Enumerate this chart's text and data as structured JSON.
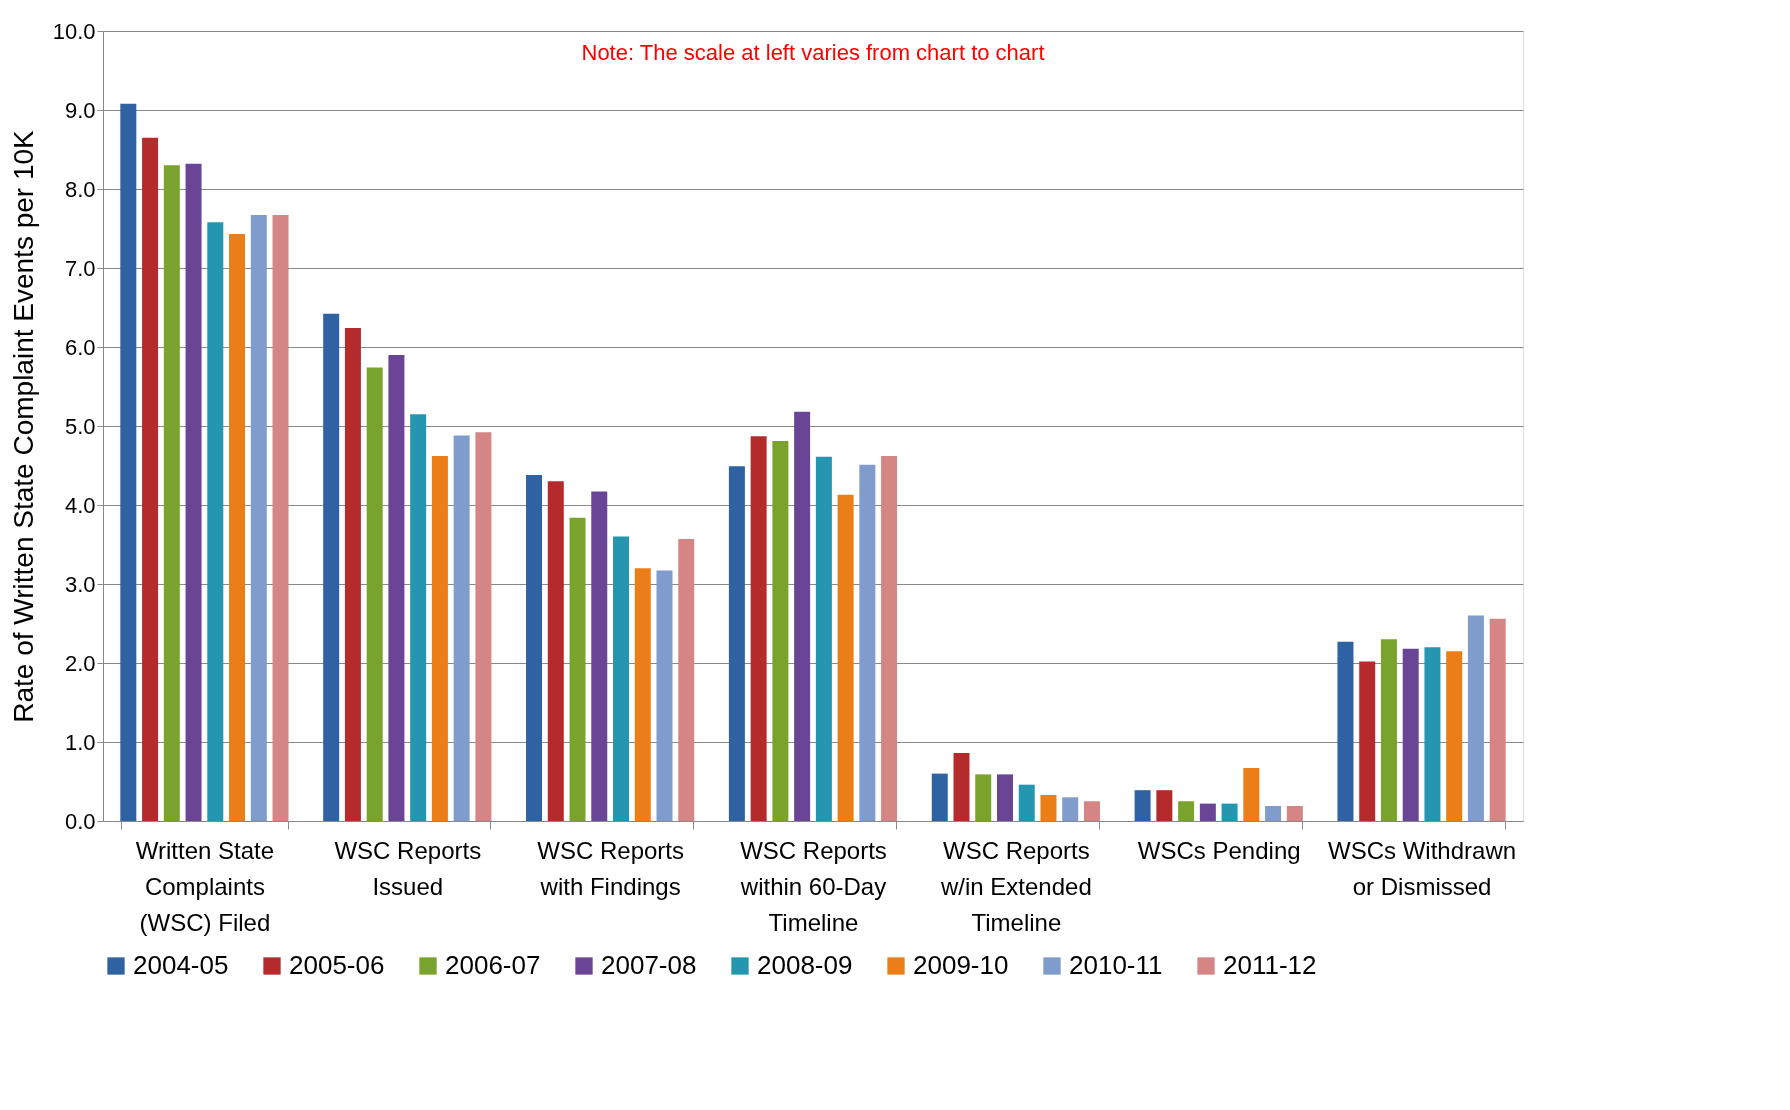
{
  "chart_data": {
    "type": "bar",
    "ylabel": "Rate of Written State Complaint Events per 10K",
    "annotations": [
      "Note:  The scale at left varies from chart to chart"
    ],
    "categories": [
      "Written State Complaints (WSC) Filed",
      "WSC Reports Issued",
      "WSC Reports with Findings",
      "WSC Reports within 60-Day Timeline",
      "WSC Reports w/in Extended Timeline",
      "WSCs Pending",
      "WSCs Withdrawn or Dismissed"
    ],
    "series": [
      {
        "name": "2004-05",
        "color": "#2e62a3",
        "values": [
          9.08,
          6.42,
          4.38,
          4.49,
          0.6,
          0.39,
          2.27
        ]
      },
      {
        "name": "2005-06",
        "color": "#b52b2b",
        "values": [
          8.65,
          6.24,
          4.3,
          4.87,
          0.86,
          0.39,
          2.02
        ]
      },
      {
        "name": "2006-07",
        "color": "#7aa32e",
        "values": [
          8.3,
          5.74,
          3.84,
          4.81,
          0.59,
          0.25,
          2.3
        ]
      },
      {
        "name": "2007-08",
        "color": "#6a4596",
        "values": [
          8.32,
          5.9,
          4.17,
          5.18,
          0.59,
          0.22,
          2.18
        ]
      },
      {
        "name": "2008-09",
        "color": "#2596b0",
        "values": [
          7.58,
          5.15,
          3.6,
          4.61,
          0.46,
          0.22,
          2.2
        ]
      },
      {
        "name": "2009-10",
        "color": "#ec7e1a",
        "values": [
          7.43,
          4.62,
          3.2,
          4.13,
          0.33,
          0.67,
          2.15
        ]
      },
      {
        "name": "2010-11",
        "color": "#7f9ccc",
        "values": [
          7.67,
          4.88,
          3.17,
          4.51,
          0.3,
          0.19,
          2.6
        ]
      },
      {
        "name": "2011-12",
        "color": "#d58584",
        "values": [
          7.67,
          4.92,
          3.57,
          4.62,
          0.25,
          0.19,
          2.56
        ]
      }
    ],
    "ylim": [
      0,
      10
    ],
    "yticks": [
      {
        "value": 0,
        "label": "0.0"
      },
      {
        "value": 1,
        "label": "1.0"
      },
      {
        "value": 2,
        "label": "2.0"
      },
      {
        "value": 3,
        "label": "3.0"
      },
      {
        "value": 4,
        "label": "4.0"
      },
      {
        "value": 5,
        "label": "5.0"
      },
      {
        "value": 6,
        "label": "6.0"
      },
      {
        "value": 7,
        "label": "7.0"
      },
      {
        "value": 8,
        "label": "8.0"
      },
      {
        "value": 9,
        "label": "9.0"
      },
      {
        "value": 10,
        "label": "10.0"
      }
    ],
    "grid": "y",
    "legend": "bottom"
  }
}
